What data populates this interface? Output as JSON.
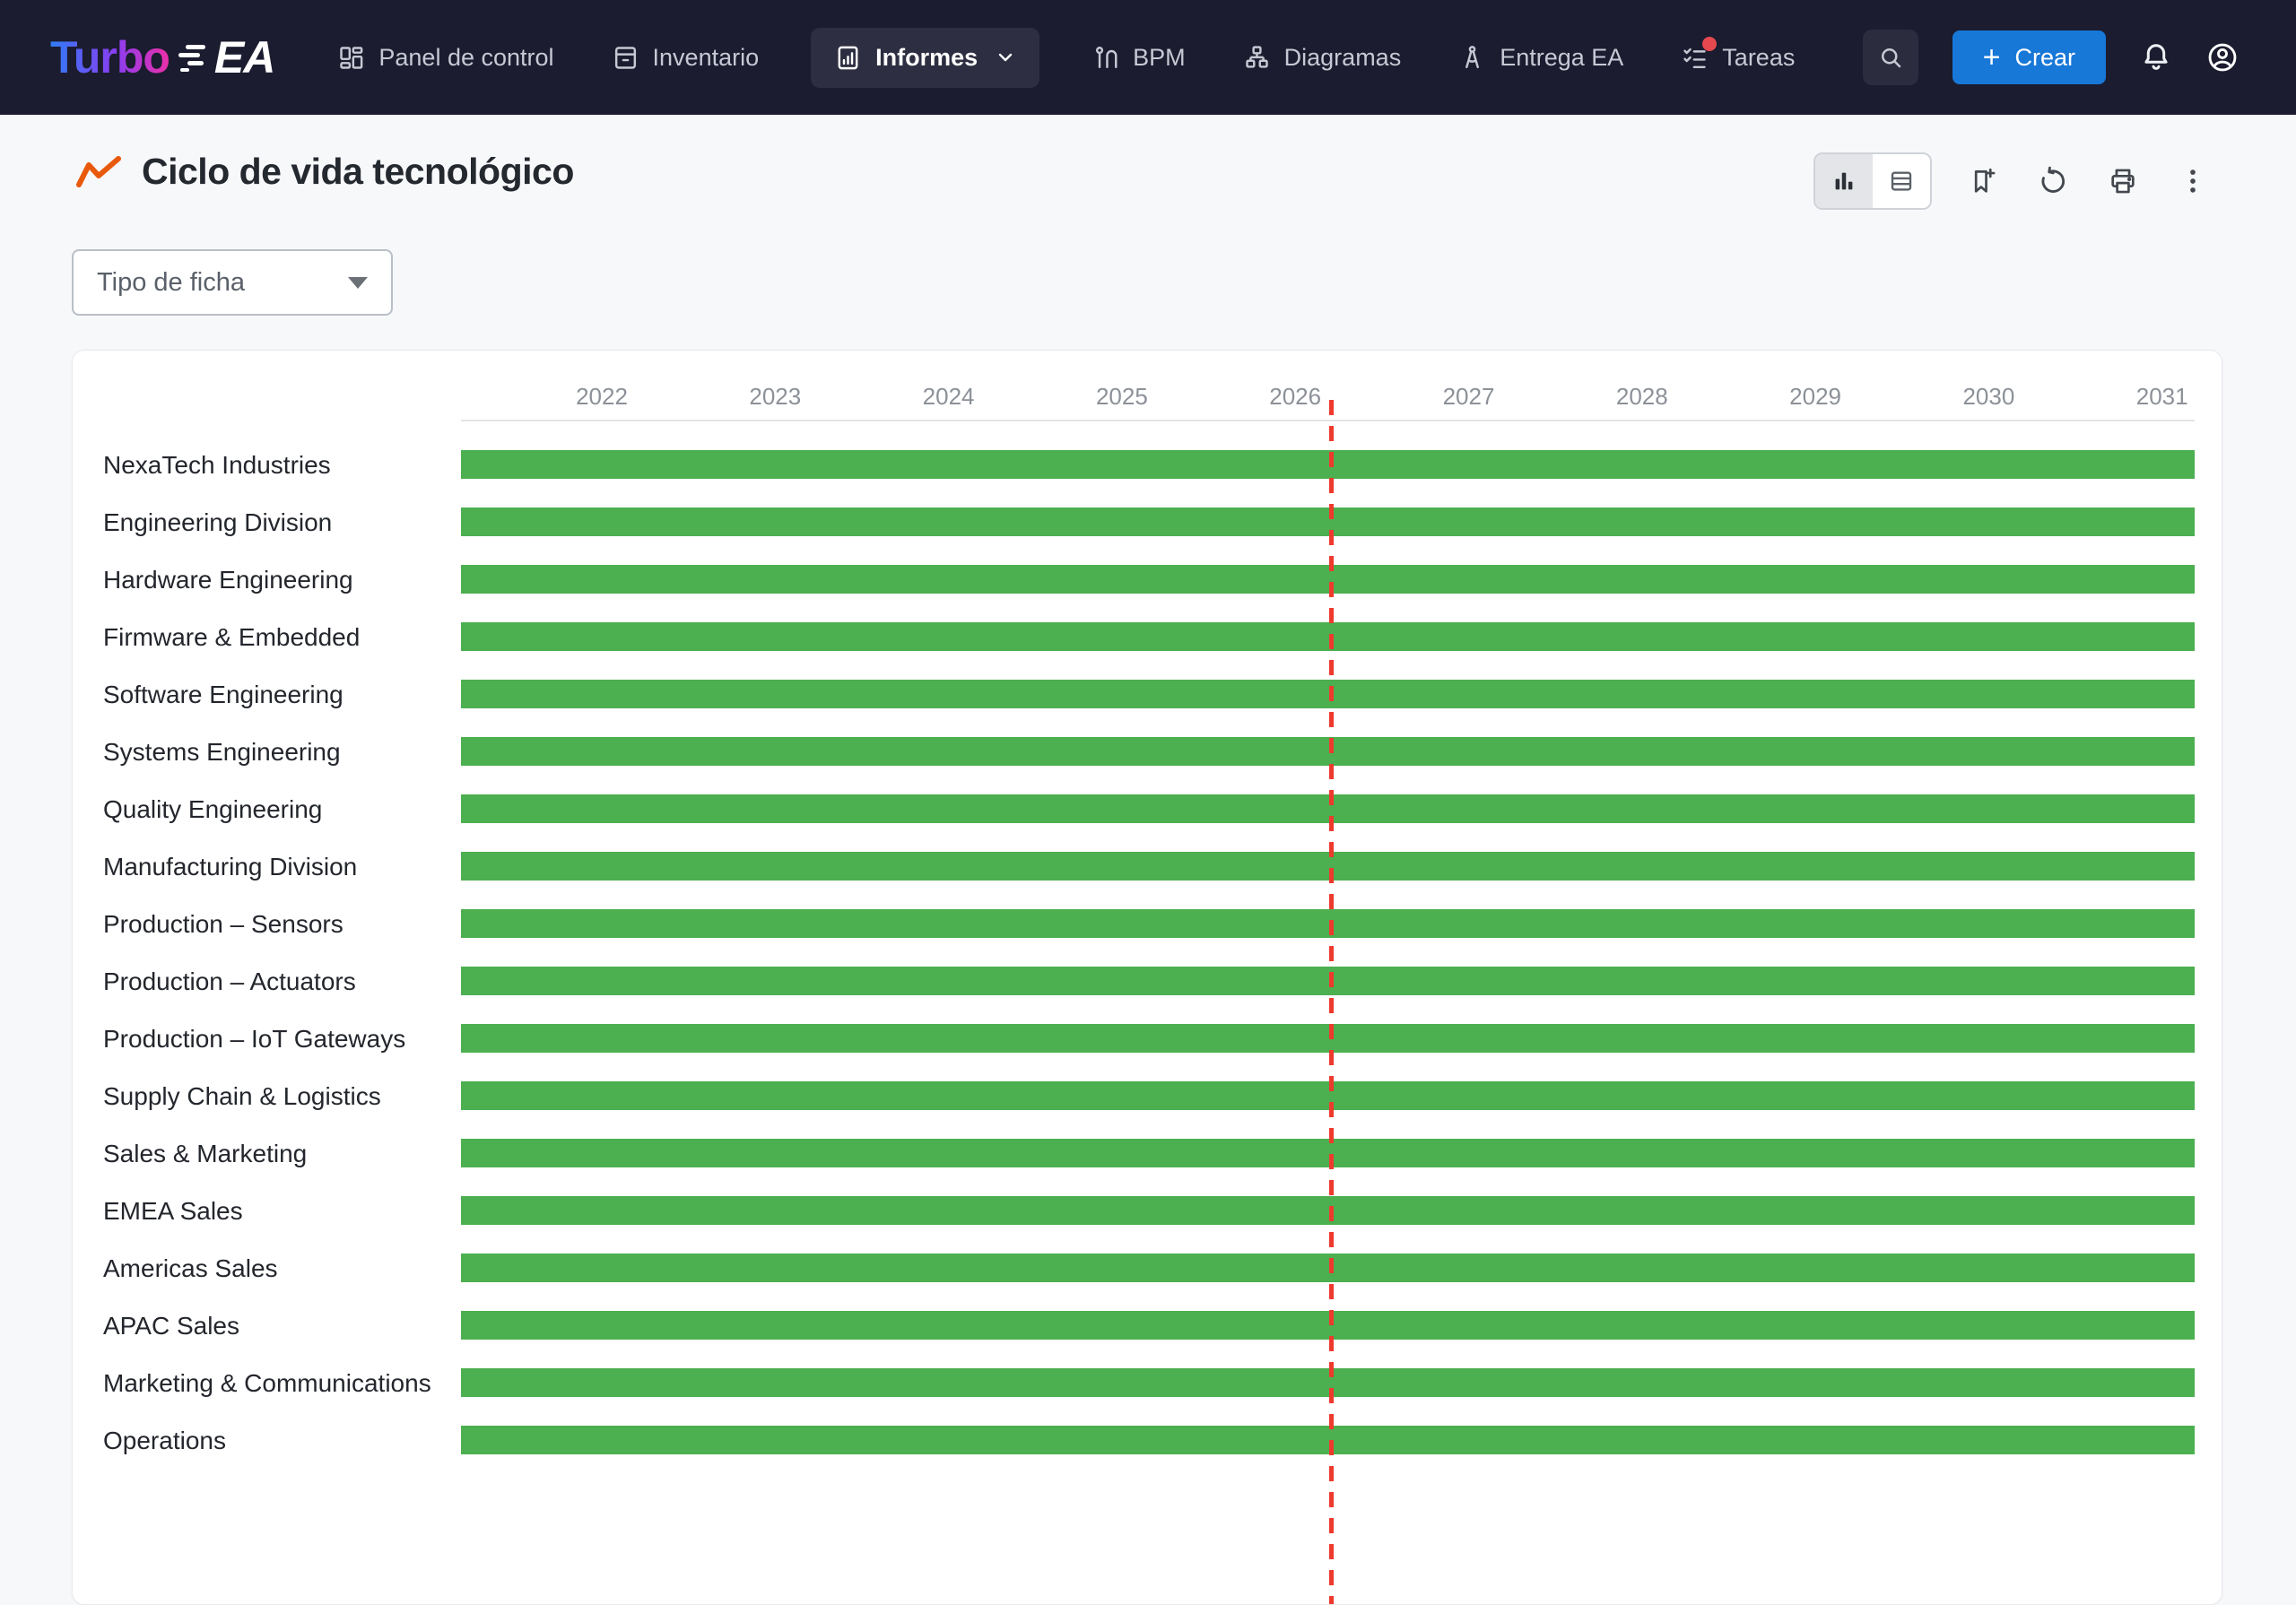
{
  "colors": {
    "nav_bg": "#1b1c2f",
    "active_pill_bg": "#2d2e41",
    "create_button_blue": "#1878d8",
    "title_icon_orange": "#e8590c",
    "bar_green": "#4caf50",
    "today_line_red": "#ee3a2d",
    "badge_red": "#e5484f"
  },
  "nav": {
    "logo": {
      "turbo": "Turbo",
      "ea": "EA"
    },
    "items": [
      {
        "label": "Panel de control",
        "icon": "dashboard-icon",
        "active": false
      },
      {
        "label": "Inventario",
        "icon": "inventory-icon",
        "active": false
      },
      {
        "label": "Informes",
        "icon": "reports-icon",
        "active": true,
        "chevron": true
      },
      {
        "label": "BPM",
        "icon": "bpm-icon",
        "active": false
      },
      {
        "label": "Diagramas",
        "icon": "diagrams-icon",
        "active": false
      },
      {
        "label": "Entrega EA",
        "icon": "ea-delivery-icon",
        "active": false
      },
      {
        "label": "Tareas",
        "icon": "tasks-icon",
        "active": false,
        "notification_dot": true
      }
    ],
    "search_icon": "search-icon",
    "create_button": {
      "label": "Crear",
      "plus": "+"
    },
    "right_icons": [
      "bell-icon",
      "user-avatar-icon"
    ]
  },
  "page": {
    "title": "Ciclo de vida tecnológico",
    "title_icon": "trend-line-icon",
    "filter": {
      "label": "Tipo de ficha"
    }
  },
  "report_toolbar": {
    "view_toggle": [
      {
        "icon": "bar-chart-view-icon",
        "active": true
      },
      {
        "icon": "table-view-icon",
        "active": false
      }
    ],
    "icons": [
      "bookmark-add-icon",
      "refresh-icon",
      "print-icon",
      "kebab-menu-icon"
    ]
  },
  "chart_data": {
    "type": "gantt",
    "title": "Ciclo de vida tecnológico",
    "years": [
      "2022",
      "2023",
      "2024",
      "2025",
      "2026",
      "2027",
      "2028",
      "2029",
      "2030",
      "2031"
    ],
    "axis_range_years": [
      2021.5,
      2031.5
    ],
    "bar_color": "#4caf50",
    "today_marker": {
      "approx_year": 2026.2,
      "style": "dashed",
      "color": "#ee3a2d"
    },
    "legend": "none",
    "rows": [
      {
        "label": "NexaTech Industries",
        "start_frac": 0,
        "end_frac": 1
      },
      {
        "label": "Engineering Division",
        "start_frac": 0,
        "end_frac": 1
      },
      {
        "label": "Hardware Engineering",
        "start_frac": 0,
        "end_frac": 1
      },
      {
        "label": "Firmware & Embedded",
        "start_frac": 0,
        "end_frac": 1
      },
      {
        "label": "Software Engineering",
        "start_frac": 0,
        "end_frac": 1
      },
      {
        "label": "Systems Engineering",
        "start_frac": 0,
        "end_frac": 1
      },
      {
        "label": "Quality Engineering",
        "start_frac": 0,
        "end_frac": 1
      },
      {
        "label": "Manufacturing Division",
        "start_frac": 0,
        "end_frac": 1
      },
      {
        "label": "Production – Sensors",
        "start_frac": 0,
        "end_frac": 1
      },
      {
        "label": "Production – Actuators",
        "start_frac": 0,
        "end_frac": 1
      },
      {
        "label": "Production – IoT Gateways",
        "start_frac": 0,
        "end_frac": 1
      },
      {
        "label": "Supply Chain & Logistics",
        "start_frac": 0,
        "end_frac": 1
      },
      {
        "label": "Sales & Marketing",
        "start_frac": 0,
        "end_frac": 1
      },
      {
        "label": "EMEA Sales",
        "start_frac": 0,
        "end_frac": 1
      },
      {
        "label": "Americas Sales",
        "start_frac": 0,
        "end_frac": 1
      },
      {
        "label": "APAC Sales",
        "start_frac": 0,
        "end_frac": 1
      },
      {
        "label": "Marketing & Communications",
        "start_frac": 0,
        "end_frac": 1
      },
      {
        "label": "Operations",
        "start_frac": 0,
        "end_frac": 1
      }
    ]
  }
}
